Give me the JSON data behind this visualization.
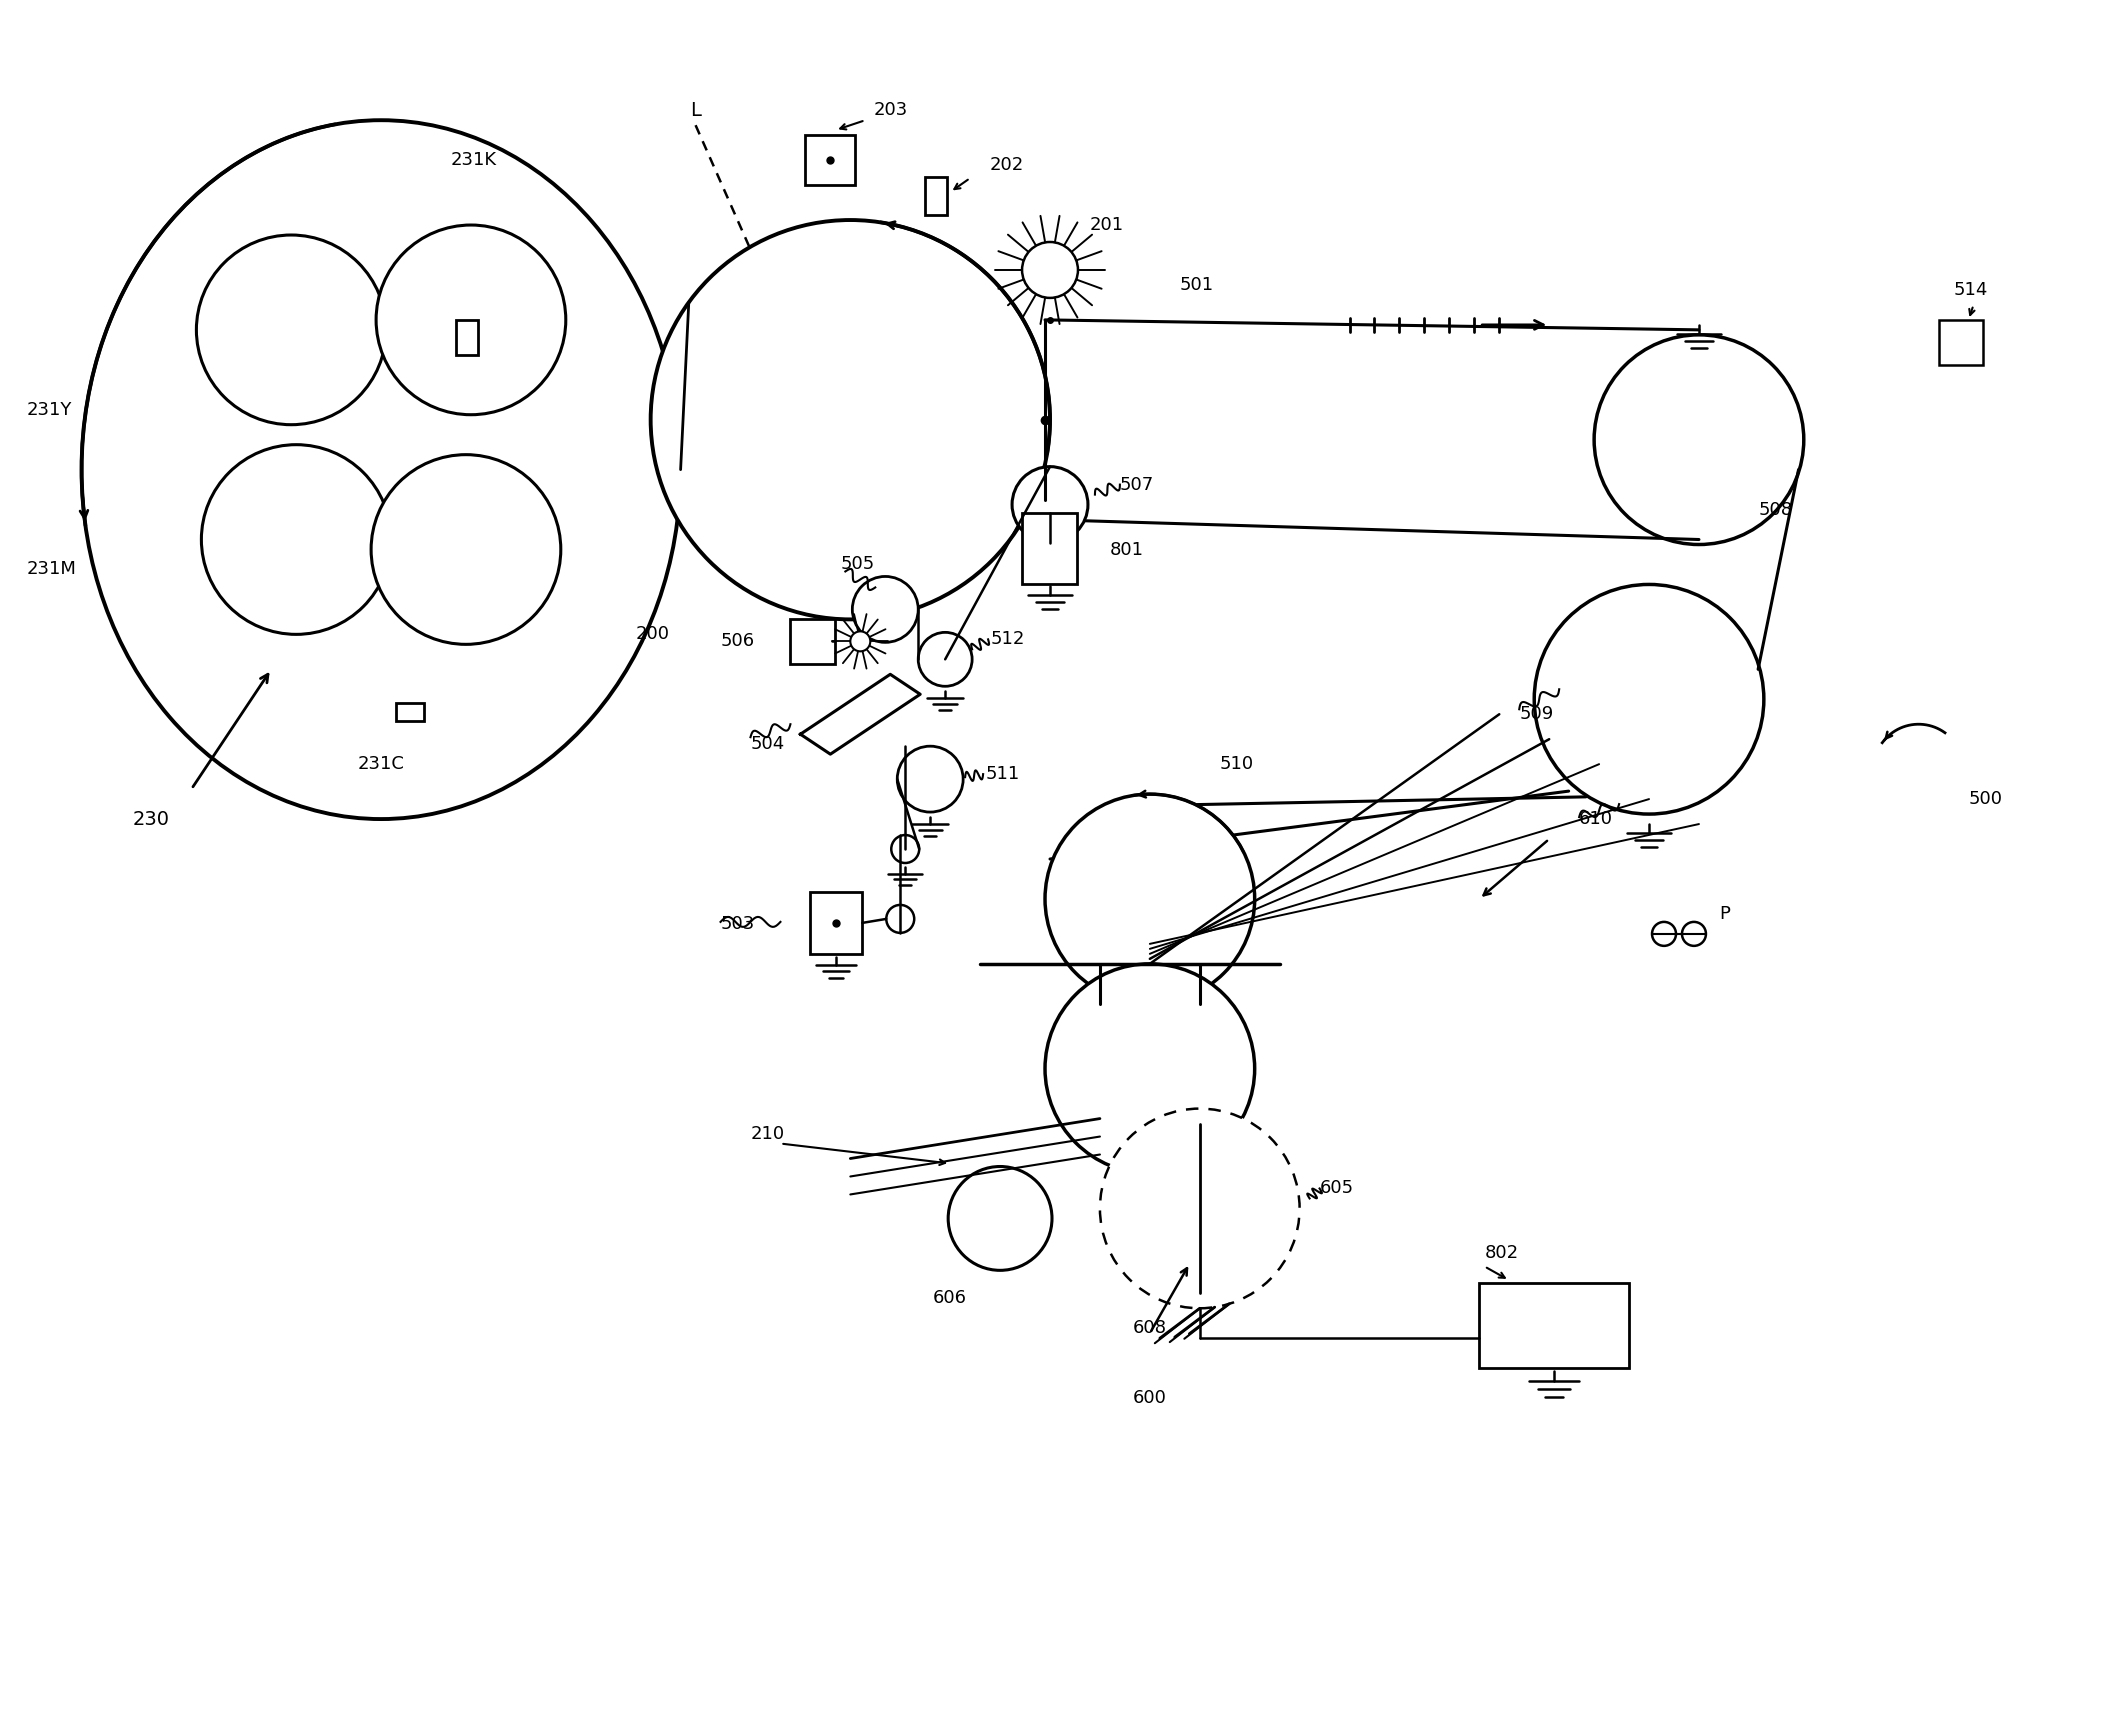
{
  "bg_color": "#ffffff",
  "line_color": "#000000",
  "figsize": [
    21.1,
    17.19
  ],
  "dpi": 100,
  "xlim": [
    0,
    21.1
  ],
  "ylim": [
    0,
    17.19
  ]
}
